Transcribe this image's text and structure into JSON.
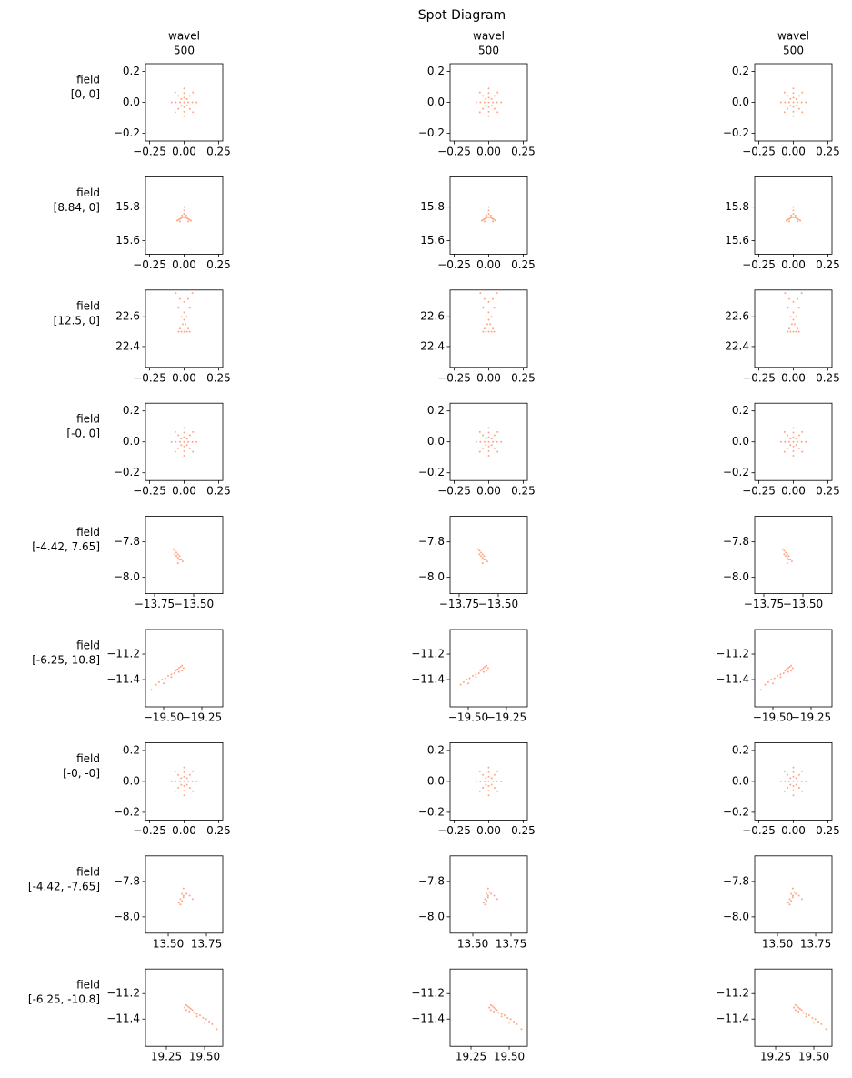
{
  "chart_data": {
    "type": "scatter",
    "title": "Spot Diagram",
    "color": "#ff7f50",
    "field_word": "field",
    "columns": [
      {
        "label": "wavel",
        "value": 500
      },
      {
        "label": "wavel",
        "value": 500
      },
      {
        "label": "wavel",
        "value": 500
      }
    ],
    "rows": [
      {
        "field": "[0, 0]",
        "xlim": [
          -0.28,
          0.28
        ],
        "ylim": [
          -0.25,
          0.25
        ],
        "xticks": [
          {
            "value": -0.25,
            "label": "−0.25"
          },
          {
            "value": 0,
            "label": "0.00"
          },
          0.25
        ],
        "yticks": [
          {
            "value": -0.2,
            "label": "−0.2"
          },
          {
            "value": 0,
            "label": "0.0"
          },
          0.2
        ],
        "x": [
          0,
          0.03,
          0.06,
          0.09,
          -0.03,
          -0.06,
          -0.09,
          0,
          0,
          0,
          0,
          0,
          0,
          0.021,
          0.042,
          0.064,
          -0.021,
          -0.042,
          -0.064,
          0.021,
          0.042,
          0.064,
          -0.021,
          -0.042,
          -0.064
        ],
        "y": [
          0,
          0,
          0,
          0,
          0,
          0,
          0,
          0.03,
          0.06,
          0.09,
          -0.03,
          -0.06,
          -0.09,
          0.021,
          0.042,
          0.064,
          0.021,
          0.042,
          0.064,
          -0.021,
          -0.042,
          -0.064,
          -0.021,
          -0.042,
          -0.064
        ]
      },
      {
        "field": "[8.84, 0]",
        "xlim": [
          -0.28,
          0.28
        ],
        "ylim": [
          15.52,
          15.98
        ],
        "xticks": [
          {
            "value": -0.25,
            "label": "−0.25"
          },
          {
            "value": 0,
            "label": "0.00"
          },
          0.25
        ],
        "yticks": [
          15.6,
          15.8
        ],
        "x": [
          -0.05,
          -0.04,
          -0.03,
          -0.02,
          -0.01,
          0,
          0.01,
          0.02,
          0.03,
          0.04,
          0.05,
          -0.03,
          0.03,
          -0.015,
          0.015,
          0,
          0,
          0
        ],
        "y": [
          15.72,
          15.725,
          15.73,
          15.735,
          15.74,
          15.74,
          15.74,
          15.735,
          15.73,
          15.725,
          15.72,
          15.715,
          15.715,
          15.75,
          15.75,
          15.76,
          15.78,
          15.8
        ]
      },
      {
        "field": "[12.5, 0]",
        "xlim": [
          -0.28,
          0.28
        ],
        "ylim": [
          22.26,
          22.78
        ],
        "xticks": [
          {
            "value": -0.25,
            "label": "−0.25"
          },
          {
            "value": 0,
            "label": "0.00"
          },
          0.25
        ],
        "yticks": [
          22.4,
          22.6
        ],
        "x": [
          -0.04,
          -0.02,
          0,
          0.02,
          0.04,
          -0.03,
          0.03,
          -0.01,
          0.01,
          0,
          -0.02,
          0.02,
          0,
          -0.04,
          0.04,
          -0.06,
          0.06,
          0,
          -0.03,
          0.03
        ],
        "y": [
          22.5,
          22.5,
          22.5,
          22.5,
          22.5,
          22.52,
          22.52,
          22.55,
          22.55,
          22.58,
          22.6,
          22.6,
          22.63,
          22.66,
          22.66,
          22.76,
          22.76,
          22.7,
          22.72,
          22.72
        ]
      },
      {
        "field": "[-0, 0]",
        "xlim": [
          -0.28,
          0.28
        ],
        "ylim": [
          -0.25,
          0.25
        ],
        "xticks": [
          {
            "value": -0.25,
            "label": "−0.25"
          },
          {
            "value": 0,
            "label": "0.00"
          },
          0.25
        ],
        "yticks": [
          {
            "value": -0.2,
            "label": "−0.2"
          },
          {
            "value": 0,
            "label": "0.0"
          },
          0.2
        ],
        "x": [
          0,
          0.03,
          0.06,
          0.09,
          -0.03,
          -0.06,
          -0.09,
          0,
          0,
          0,
          0,
          0,
          0,
          0.021,
          0.042,
          0.064,
          -0.021,
          -0.042,
          -0.064,
          0.021,
          0.042,
          0.064,
          -0.021,
          -0.042,
          -0.064
        ],
        "y": [
          0,
          0,
          0,
          0,
          0,
          0,
          0,
          0.03,
          0.06,
          0.09,
          -0.03,
          -0.06,
          -0.09,
          0.021,
          0.042,
          0.064,
          0.021,
          0.042,
          0.064,
          -0.021,
          -0.042,
          -0.064,
          -0.021,
          -0.042,
          -0.064
        ]
      },
      {
        "field": "[-4.42, 7.65]",
        "xlim": [
          -13.808,
          -13.314
        ],
        "ylim": [
          -8.092,
          -7.656
        ],
        "xticks": [
          {
            "value": -13.75,
            "label": "−13.75"
          },
          {
            "value": -13.5,
            "label": "−13.50"
          }
        ],
        "yticks": [
          {
            "value": -8.0,
            "label": "−8.0"
          },
          {
            "value": -7.8,
            "label": "−7.8"
          }
        ],
        "x": [
          -13.63,
          -13.62,
          -13.61,
          -13.6,
          -13.59,
          -13.58,
          -13.62,
          -13.61,
          -13.6,
          -13.59,
          -13.57,
          -13.6
        ],
        "y": [
          -7.84,
          -7.85,
          -7.86,
          -7.87,
          -7.88,
          -7.9,
          -7.87,
          -7.88,
          -7.89,
          -7.9,
          -7.91,
          -7.92
        ]
      },
      {
        "field": "[-6.25, 10.8]",
        "xlim": [
          -19.619,
          -19.113
        ],
        "ylim": [
          -11.614,
          -11.007
        ],
        "xticks": [
          {
            "value": -19.5,
            "label": "−19.50"
          },
          {
            "value": -19.25,
            "label": "−19.25"
          }
        ],
        "yticks": [
          {
            "value": -11.4,
            "label": "−11.4"
          },
          {
            "value": -11.2,
            "label": "−11.2"
          }
        ],
        "x": [
          -19.38,
          -19.39,
          -19.4,
          -19.41,
          -19.42,
          -19.37,
          -19.38,
          -19.4,
          -19.43,
          -19.45,
          -19.47,
          -19.49,
          -19.51,
          -19.53,
          -19.55,
          -19.58,
          -19.45,
          -19.5
        ],
        "y": [
          -11.29,
          -11.3,
          -11.31,
          -11.32,
          -11.33,
          -11.31,
          -11.33,
          -11.34,
          -11.35,
          -11.36,
          -11.37,
          -11.39,
          -11.4,
          -11.42,
          -11.44,
          -11.48,
          -11.38,
          -11.43
        ]
      },
      {
        "field": "[-0, -0]",
        "xlim": [
          -0.28,
          0.28
        ],
        "ylim": [
          -0.25,
          0.25
        ],
        "xticks": [
          {
            "value": -0.25,
            "label": "−0.25"
          },
          {
            "value": 0,
            "label": "0.00"
          },
          0.25
        ],
        "yticks": [
          {
            "value": -0.2,
            "label": "−0.2"
          },
          {
            "value": 0,
            "label": "0.0"
          },
          0.2
        ],
        "x": [
          0,
          0.03,
          0.06,
          0.09,
          -0.03,
          -0.06,
          -0.09,
          0,
          0,
          0,
          0,
          0,
          0,
          0.021,
          0.042,
          0.064,
          -0.021,
          -0.042,
          -0.064,
          0.021,
          0.042,
          0.064,
          -0.021,
          -0.042,
          -0.064
        ],
        "y": [
          0,
          0,
          0,
          0,
          0,
          0,
          0,
          0.03,
          0.06,
          0.09,
          -0.03,
          -0.06,
          -0.09,
          0.021,
          0.042,
          0.064,
          0.021,
          0.042,
          0.064,
          -0.021,
          -0.042,
          -0.064,
          -0.021,
          -0.042,
          -0.064
        ]
      },
      {
        "field": "[-4.42, -7.65]",
        "xlim": [
          13.351,
          13.857
        ],
        "ylim": [
          -8.092,
          -7.656
        ],
        "xticks": [
          {
            "value": 13.5,
            "label": "13.50"
          },
          13.75
        ],
        "yticks": [
          {
            "value": -8.0,
            "label": "−8.0"
          },
          {
            "value": -7.8,
            "label": "−7.8"
          }
        ],
        "x": [
          13.6,
          13.61,
          13.59,
          13.6,
          13.58,
          13.57,
          13.62,
          13.6,
          13.59,
          13.64,
          13.66,
          13.58
        ],
        "y": [
          -7.84,
          -7.86,
          -7.87,
          -7.88,
          -7.9,
          -7.92,
          -7.87,
          -7.89,
          -7.91,
          -7.88,
          -7.9,
          -7.93
        ]
      },
      {
        "field": "[-6.25, -10.8]",
        "xlim": [
          19.113,
          19.619
        ],
        "ylim": [
          -11.614,
          -11.007
        ],
        "xticks": [
          19.25,
          {
            "value": 19.5,
            "label": "19.50"
          }
        ],
        "yticks": [
          {
            "value": -11.4,
            "label": "−11.4"
          },
          {
            "value": -11.2,
            "label": "−11.2"
          }
        ],
        "x": [
          19.38,
          19.39,
          19.4,
          19.41,
          19.42,
          19.37,
          19.38,
          19.4,
          19.43,
          19.45,
          19.47,
          19.49,
          19.51,
          19.53,
          19.55,
          19.58,
          19.45,
          19.5
        ],
        "y": [
          -11.29,
          -11.3,
          -11.31,
          -11.32,
          -11.33,
          -11.31,
          -11.33,
          -11.34,
          -11.35,
          -11.36,
          -11.37,
          -11.39,
          -11.4,
          -11.42,
          -11.44,
          -11.48,
          -11.38,
          -11.43
        ]
      }
    ]
  }
}
